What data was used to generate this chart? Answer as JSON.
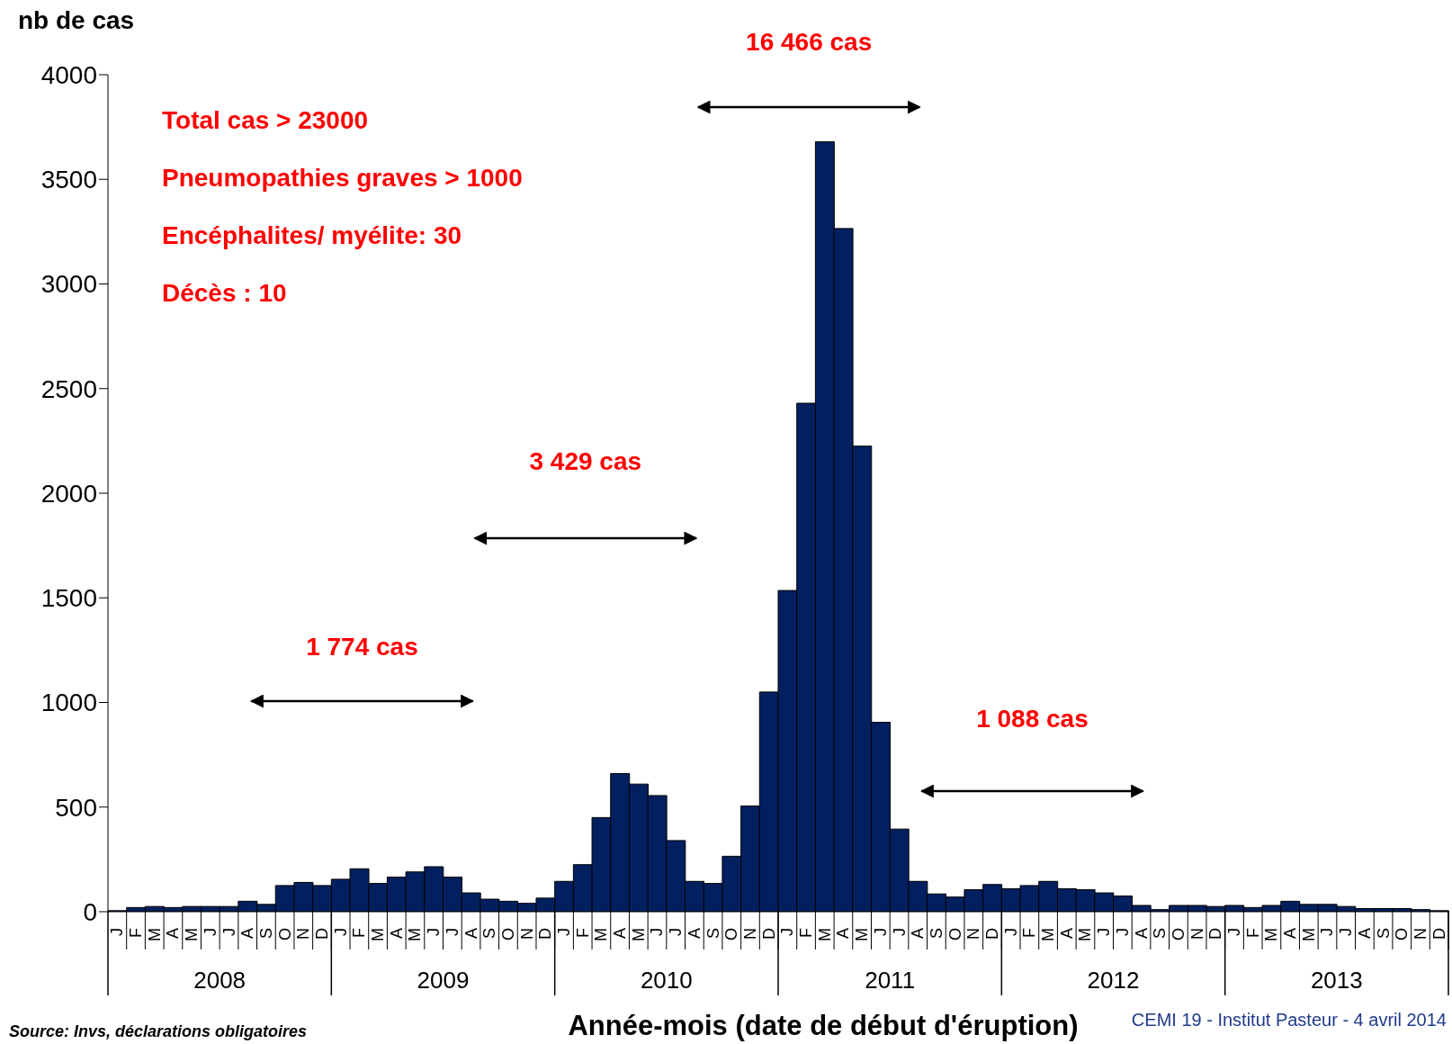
{
  "chart_data": {
    "type": "bar",
    "ylabel": "nb de cas",
    "xlabel": "Année-mois (date de début d'éruption)",
    "categories": [
      "J",
      "F",
      "M",
      "A",
      "M",
      "J",
      "J",
      "A",
      "S",
      "O",
      "N",
      "D",
      "J",
      "F",
      "M",
      "A",
      "M",
      "J",
      "J",
      "A",
      "S",
      "O",
      "N",
      "D",
      "J",
      "F",
      "M",
      "A",
      "M",
      "J",
      "J",
      "A",
      "S",
      "O",
      "N",
      "D",
      "J",
      "F",
      "M",
      "A",
      "M",
      "J",
      "J",
      "A",
      "S",
      "O",
      "N",
      "D",
      "J",
      "F",
      "M",
      "A",
      "M",
      "J",
      "J",
      "A",
      "S",
      "O",
      "N",
      "D",
      "J",
      "F",
      "M",
      "A",
      "M",
      "J",
      "J",
      "A",
      "S",
      "O",
      "N",
      "D"
    ],
    "values": [
      5,
      20,
      25,
      20,
      25,
      25,
      25,
      50,
      35,
      125,
      140,
      125,
      155,
      205,
      135,
      165,
      190,
      215,
      165,
      90,
      60,
      50,
      40,
      65,
      145,
      225,
      450,
      660,
      610,
      555,
      340,
      145,
      135,
      265,
      505,
      1050,
      1535,
      2430,
      3680,
      3265,
      2225,
      905,
      395,
      145,
      85,
      70,
      105,
      130,
      110,
      125,
      145,
      110,
      105,
      90,
      75,
      30,
      10,
      30,
      30,
      25,
      30,
      20,
      30,
      50,
      35,
      35,
      25,
      15,
      15,
      15,
      10,
      5
    ],
    "color": "#02205f",
    "ylim": [
      0,
      4000
    ],
    "yticks": [
      0,
      500,
      1000,
      1500,
      2000,
      2500,
      3000,
      3500,
      4000
    ],
    "grid": false,
    "annotations": [
      "Total cas > 23000",
      "Pneumopathies graves > 1000",
      "Encéphalites/ myélite: 30",
      "Décès : 10",
      "1 774 cas",
      "3 429 cas",
      "16 466 cas",
      "1 088 cas",
      "2008",
      "2009",
      "2010",
      "2011",
      "2012",
      "2013",
      "Source: Invs, déclarations obligatoires",
      "CEMI 19 - Institut Pasteur - 4 avril 2014"
    ]
  }
}
